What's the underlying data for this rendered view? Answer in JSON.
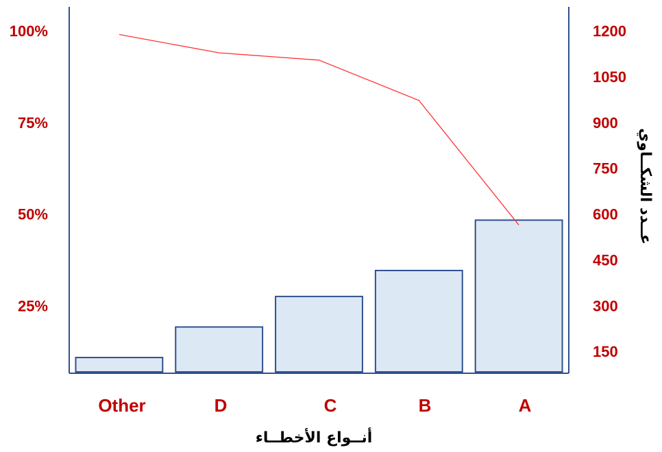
{
  "chart_data": {
    "type": "bar",
    "categories": [
      "Other",
      "D",
      "C",
      "B",
      "A"
    ],
    "series": [
      {
        "type": "bar",
        "values": [
          130,
          230,
          330,
          415,
          580
        ]
      },
      {
        "type": "line",
        "axis": "percent",
        "values": [
          99,
          94,
          92,
          81,
          47
        ]
      }
    ],
    "xlabel": "أنــواع الأخطــاء",
    "ylabel_right": "عــدد الشكــاوي",
    "ylim": [
      0,
      1200
    ],
    "yticks": [
      150,
      300,
      450,
      600,
      750,
      900,
      1050,
      1200
    ],
    "ytick_labels": [
      "150",
      "300",
      "450",
      "600",
      "750",
      "900",
      "1050",
      "1200"
    ],
    "percent_ylim": [
      0,
      100
    ],
    "percent_ticks": [
      25,
      50,
      75,
      100
    ],
    "percent_tick_labels": [
      "25%",
      "50%",
      "75%",
      "100%"
    ],
    "colors": {
      "bar_fill": "#dde8f5",
      "bar_stroke": "#2f4f8f",
      "axis": "#2f4f8f",
      "line": "#ff3333",
      "label": "#c00000"
    }
  }
}
